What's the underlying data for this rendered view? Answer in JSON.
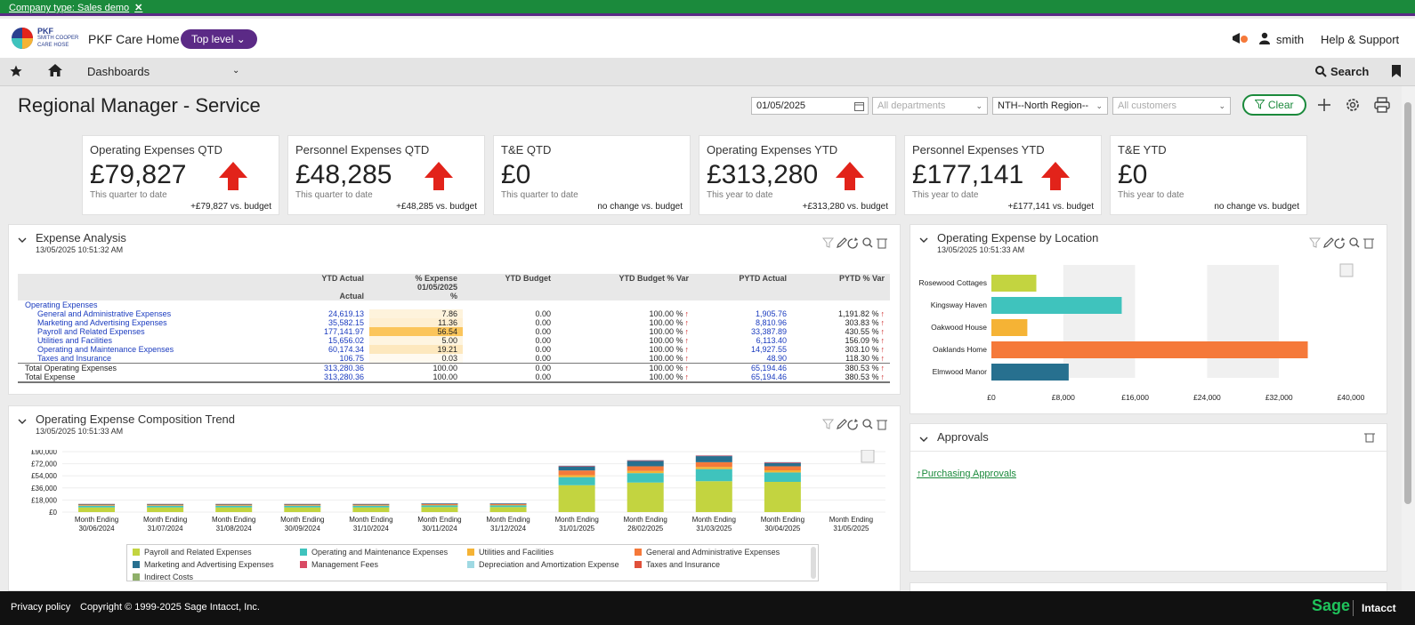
{
  "banner": {
    "company_type": "Company type: Sales demo",
    "close": "✕"
  },
  "header": {
    "logo_line1": "PKF",
    "logo_line2": "SMITH COOPER",
    "logo_line3": "CARE HOSE",
    "app_name": "PKF Care Home",
    "level": "Top level",
    "user": "smith",
    "help": "Help & Support"
  },
  "nav": {
    "dashboards": "Dashboards",
    "search": "Search"
  },
  "page": {
    "title": "Regional Manager - Service"
  },
  "filters": {
    "date": "01/05/2025",
    "departments_placeholder": "All departments",
    "region": "NTH--North Region--",
    "customers_placeholder": "All customers",
    "clear": "Clear"
  },
  "kpis": [
    {
      "title": "Operating Expenses QTD",
      "value": "£79,827",
      "sub": "This quarter to date",
      "compare": "+£79,827 vs. budget",
      "arrow": true
    },
    {
      "title": "Personnel Expenses QTD",
      "value": "£48,285",
      "sub": "This quarter to date",
      "compare": "+£48,285 vs. budget",
      "arrow": true
    },
    {
      "title": "T&E QTD",
      "value": "£0",
      "sub": "This quarter to date",
      "compare": "no change vs. budget",
      "arrow": false
    },
    {
      "title": "Operating Expenses YTD",
      "value": "£313,280",
      "sub": "This year to date",
      "compare": "+£313,280 vs. budget",
      "arrow": true
    },
    {
      "title": "Personnel Expenses YTD",
      "value": "£177,141",
      "sub": "This year to date",
      "compare": "+£177,141 vs. budget",
      "arrow": true
    },
    {
      "title": "T&E YTD",
      "value": "£0",
      "sub": "This year to date",
      "compare": "no change vs. budget",
      "arrow": false
    }
  ],
  "expense_analysis": {
    "title": "Expense Analysis",
    "timestamp": "13/05/2025 10:51:32 AM",
    "headers": {
      "ytd_actual": "YTD Actual",
      "actual": "Actual",
      "pct_expense": "% Expense",
      "pct_date": "01/05/2025",
      "pct": "%",
      "ytd_budget": "YTD Budget",
      "ytd_budget_var": "YTD Budget % Var",
      "pytd_actual": "PYTD Actual",
      "pytd_var": "PYTD % Var"
    },
    "group_label": "Operating Expenses",
    "rows": [
      {
        "label": "General and Administrative Expenses",
        "ytd": "24,619.13",
        "pct": "7.86",
        "heat": 0.14,
        "budget": "0.00",
        "bvar": "100.00 %",
        "pytd": "1,905.76",
        "pvar": "1,191.82 %"
      },
      {
        "label": "Marketing and Advertising Expenses",
        "ytd": "35,582.15",
        "pct": "11.36",
        "heat": 0.2,
        "budget": "0.00",
        "bvar": "100.00 %",
        "pytd": "8,810.96",
        "pvar": "303.83 %"
      },
      {
        "label": "Payroll and Related Expenses",
        "ytd": "177,141.97",
        "pct": "56.54",
        "heat": 1.0,
        "budget": "0.00",
        "bvar": "100.00 %",
        "pytd": "33,387.89",
        "pvar": "430.55 %"
      },
      {
        "label": "Utilities and Facilities",
        "ytd": "15,656.02",
        "pct": "5.00",
        "heat": 0.09,
        "budget": "0.00",
        "bvar": "100.00 %",
        "pytd": "6,113.40",
        "pvar": "156.09 %"
      },
      {
        "label": "Operating and Maintenance Expenses",
        "ytd": "60,174.34",
        "pct": "19.21",
        "heat": 0.34,
        "budget": "0.00",
        "bvar": "100.00 %",
        "pytd": "14,927.55",
        "pvar": "303.10 %"
      },
      {
        "label": "Taxes and Insurance",
        "ytd": "106.75",
        "pct": "0.03",
        "heat": 0.01,
        "budget": "0.00",
        "bvar": "100.00 %",
        "pytd": "48.90",
        "pvar": "118.30 %"
      }
    ],
    "total_op": {
      "label": "Total Operating Expenses",
      "ytd": "313,280.36",
      "pct": "100.00",
      "budget": "0.00",
      "bvar": "100.00 %",
      "pytd": "65,194.46",
      "pvar": "380.53 %"
    },
    "total": {
      "label": "Total Expense",
      "ytd": "313,280.36",
      "pct": "100.00",
      "budget": "0.00",
      "bvar": "100.00 %",
      "pytd": "65,194.46",
      "pvar": "380.53 %"
    },
    "up_arrow": "↑"
  },
  "location_chart": {
    "title": "Operating Expense by Location",
    "timestamp": "13/05/2025 10:51:33 AM",
    "chart_data": {
      "type": "bar",
      "orientation": "horizontal",
      "categories": [
        "Rosewood Cottages",
        "Kingsway Haven",
        "Oakwood House",
        "Oaklands Home",
        "Elmwood Manor"
      ],
      "values": [
        5000,
        14500,
        4000,
        35200,
        8600
      ],
      "colors": [
        "#c3d440",
        "#3fc3bd",
        "#f5b335",
        "#f5793a",
        "#27708f"
      ],
      "xlim": [
        0,
        40000
      ],
      "xticks": [
        "£0",
        "£8,000",
        "£16,000",
        "£24,000",
        "£32,000",
        "£40,000"
      ]
    }
  },
  "trend_chart": {
    "title": "Operating Expense Composition Trend",
    "timestamp": "13/05/2025 10:51:33 AM",
    "chart_data": {
      "type": "bar",
      "stacked": true,
      "categories": [
        "Month Ending|30/06/2024",
        "Month Ending|31/07/2024",
        "Month Ending|31/08/2024",
        "Month Ending|30/09/2024",
        "Month Ending|31/10/2024",
        "Month Ending|30/11/2024",
        "Month Ending|31/12/2024",
        "Month Ending|31/01/2025",
        "Month Ending|28/02/2025",
        "Month Ending|31/03/2025",
        "Month Ending|30/04/2025",
        "Month Ending|31/05/2025"
      ],
      "yticks": [
        "£90,000",
        "£72,000",
        "£54,000",
        "£36,000",
        "£18,000",
        "£0"
      ],
      "ylim": [
        0,
        90000
      ],
      "series": [
        {
          "name": "Payroll and Related Expenses",
          "color": "#c3d440",
          "values": [
            7000,
            7000,
            7000,
            7000,
            7000,
            7500,
            7500,
            40000,
            44000,
            46000,
            45000,
            0
          ]
        },
        {
          "name": "Operating and Maintenance Expenses",
          "color": "#3fc3bd",
          "values": [
            2500,
            2500,
            2500,
            2500,
            2500,
            2500,
            2500,
            12000,
            14000,
            18000,
            14000,
            0
          ]
        },
        {
          "name": "Utilities and Facilities",
          "color": "#f5b335",
          "values": [
            500,
            500,
            500,
            500,
            500,
            600,
            600,
            3000,
            3200,
            3300,
            3200,
            0
          ]
        },
        {
          "name": "General and Administrative Expenses",
          "color": "#f5793a",
          "values": [
            1200,
            1200,
            1200,
            1200,
            1200,
            1300,
            1300,
            7000,
            7000,
            7000,
            6000,
            0
          ]
        },
        {
          "name": "Marketing and Advertising Expenses",
          "color": "#27708f",
          "values": [
            800,
            800,
            800,
            800,
            800,
            900,
            900,
            6000,
            8000,
            9000,
            5000,
            0
          ]
        },
        {
          "name": "Management Fees",
          "color": "#d94a64",
          "values": [
            300,
            300,
            300,
            300,
            300,
            300,
            300,
            1000,
            1000,
            1000,
            1000,
            0
          ]
        },
        {
          "name": "Depreciation and Amortization Expense",
          "color": "#9fd9e3",
          "values": [
            200,
            200,
            200,
            200,
            200,
            200,
            200,
            500,
            500,
            500,
            500,
            0
          ]
        },
        {
          "name": "Taxes and Insurance",
          "color": "#e0503a",
          "values": [
            0,
            0,
            0,
            0,
            0,
            0,
            0,
            0,
            0,
            0,
            0,
            0
          ]
        },
        {
          "name": "Indirect Costs",
          "color": "#8fb06a",
          "values": [
            0,
            0,
            0,
            0,
            0,
            0,
            0,
            0,
            0,
            0,
            0,
            0
          ]
        }
      ]
    }
  },
  "approvals": {
    "title": "Approvals",
    "link": "Purchasing Approvals"
  },
  "footer": {
    "privacy": "Privacy policy",
    "copyright": "Copyright © 1999-2025 Sage Intacct, Inc.",
    "sage": "Sage",
    "intacct": "Intacct"
  }
}
